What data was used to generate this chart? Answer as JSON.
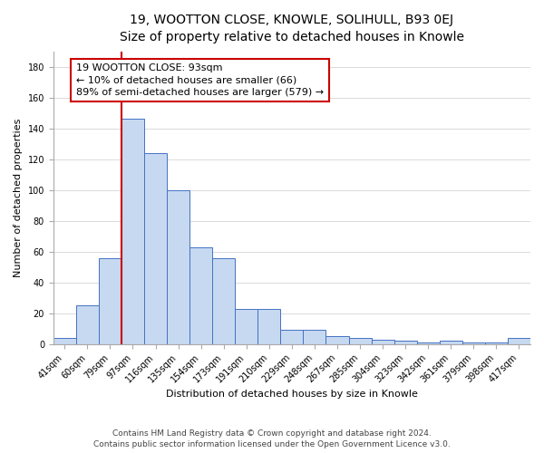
{
  "title": "19, WOOTTON CLOSE, KNOWLE, SOLIHULL, B93 0EJ",
  "subtitle": "Size of property relative to detached houses in Knowle",
  "xlabel": "Distribution of detached houses by size in Knowle",
  "ylabel": "Number of detached properties",
  "bar_labels": [
    "41sqm",
    "60sqm",
    "79sqm",
    "97sqm",
    "116sqm",
    "135sqm",
    "154sqm",
    "173sqm",
    "191sqm",
    "210sqm",
    "229sqm",
    "248sqm",
    "267sqm",
    "285sqm",
    "304sqm",
    "323sqm",
    "342sqm",
    "361sqm",
    "379sqm",
    "398sqm",
    "417sqm"
  ],
  "bar_values": [
    4,
    25,
    56,
    146,
    124,
    100,
    63,
    56,
    23,
    23,
    9,
    9,
    5,
    4,
    3,
    2,
    1,
    2,
    1,
    1,
    4
  ],
  "bar_color": "#c6d9f0",
  "bar_edge_color": "#4472c4",
  "vline_color": "#cc0000",
  "annotation_text": "19 WOOTTON CLOSE: 93sqm\n← 10% of detached houses are smaller (66)\n89% of semi-detached houses are larger (579) →",
  "annotation_box_color": "#ffffff",
  "annotation_box_edge": "#cc0000",
  "ylim": [
    0,
    190
  ],
  "yticks": [
    0,
    20,
    40,
    60,
    80,
    100,
    120,
    140,
    160,
    180
  ],
  "footer_line1": "Contains HM Land Registry data © Crown copyright and database right 2024.",
  "footer_line2": "Contains public sector information licensed under the Open Government Licence v3.0.",
  "title_fontsize": 10,
  "subtitle_fontsize": 9,
  "label_fontsize": 8,
  "tick_fontsize": 7,
  "annotation_fontsize": 8,
  "footer_fontsize": 6.5
}
